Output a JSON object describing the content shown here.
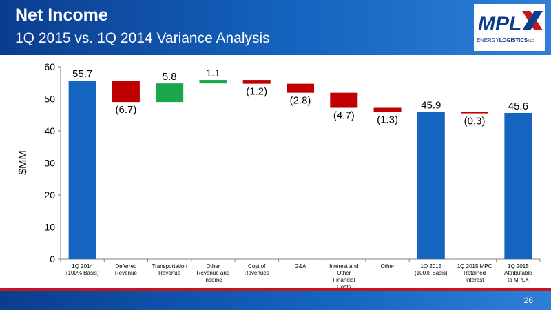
{
  "header": {
    "title": "Net Income",
    "subtitle": "1Q 2015 vs. 1Q 2014 Variance Analysis"
  },
  "logo": {
    "text_a": "ENERGY",
    "text_b": "LOGISTICS",
    "suffix": "LLC"
  },
  "footer": {
    "page_number": "26"
  },
  "colors": {
    "total": "#1565c0",
    "increase": "#1aa64a",
    "decrease": "#c00000",
    "header": "#0b3d8f"
  },
  "chart_data": {
    "type": "waterfall",
    "ylabel": "$MM",
    "ylim": [
      0,
      60
    ],
    "yticks": [
      0,
      10,
      20,
      30,
      40,
      50,
      60
    ],
    "grid": false,
    "legend": "none",
    "categories": [
      "1Q 2014 (100% Basis)",
      "Deferred Revenue",
      "Transportation Revenue",
      "Other Revenue and Income",
      "Cost of Revenues",
      "G&A",
      "Interest and Other Financial Costs",
      "Other",
      "1Q 2015 (100% Basis)",
      "1Q 2015 MPC Retained Interest",
      "1Q 2015 Attributable to MPLX"
    ],
    "category_lines": [
      [
        "1Q 2014",
        "(100% Basis)"
      ],
      [
        "Deferred",
        "Revenue"
      ],
      [
        "Transportation",
        "Revenue"
      ],
      [
        "Other",
        "Revenue and",
        "Income"
      ],
      [
        "Cost of",
        "Revenues"
      ],
      [
        "G&A"
      ],
      [
        "Interest and",
        "Other",
        "Financial",
        "Costs"
      ],
      [
        "Other"
      ],
      [
        "1Q 2015",
        "(100% Basis)"
      ],
      [
        "1Q 2015 MPC",
        "Retained",
        "Interest"
      ],
      [
        "1Q 2015",
        "Attributable",
        "to MPLX"
      ]
    ],
    "values": [
      55.7,
      -6.7,
      5.8,
      1.1,
      -1.2,
      -2.8,
      -4.7,
      -1.3,
      45.9,
      -0.3,
      45.6
    ],
    "kinds": [
      "total",
      "decrease",
      "increase",
      "increase",
      "decrease",
      "decrease",
      "decrease",
      "decrease",
      "total",
      "decrease",
      "total"
    ],
    "labels": [
      "55.7",
      "(6.7)",
      "5.8",
      "1.1",
      "(1.2)",
      "(2.8)",
      "(4.7)",
      "(1.3)",
      "45.9",
      "(0.3)",
      "45.6"
    ]
  }
}
